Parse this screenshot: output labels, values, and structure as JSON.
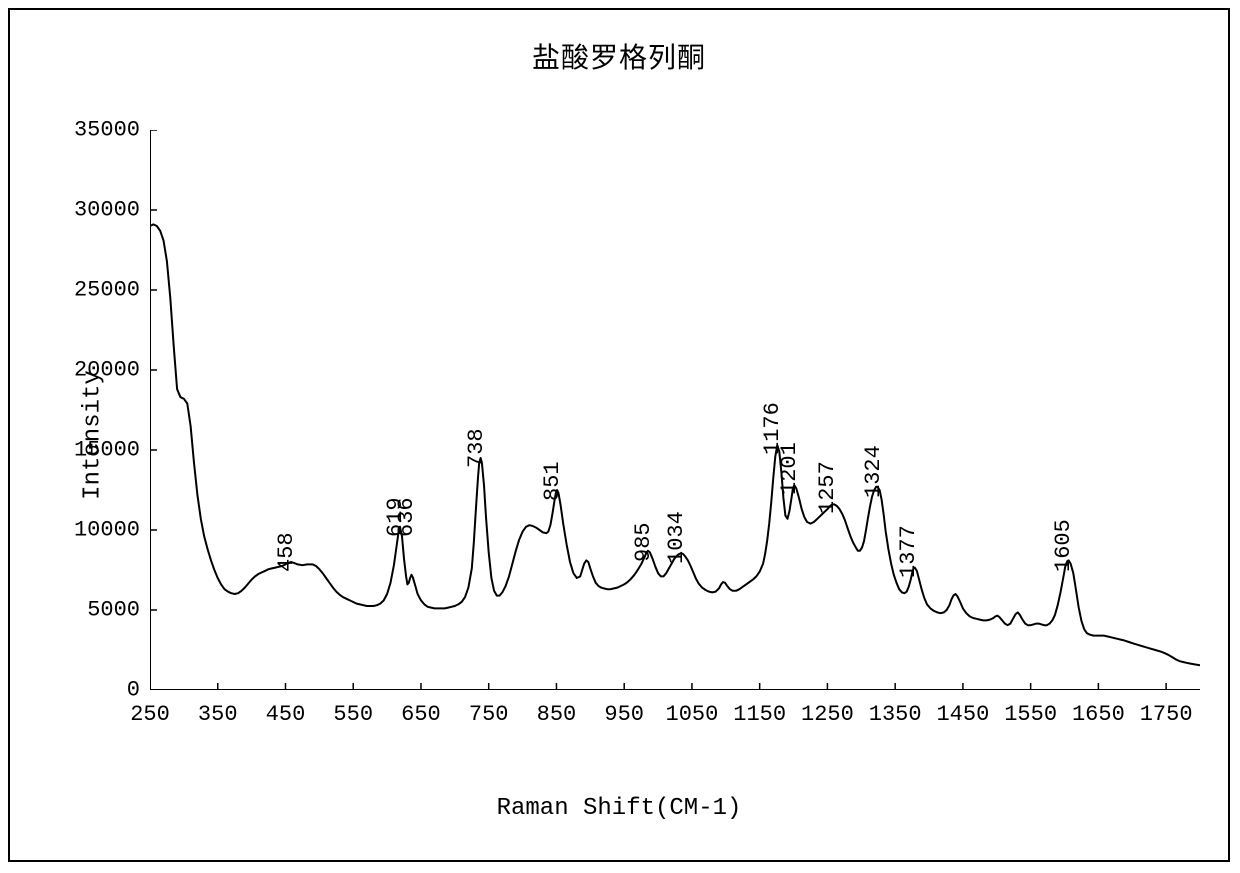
{
  "chart": {
    "type": "line",
    "title": "盐酸罗格列酮",
    "title_fontsize": 28,
    "xlabel": "Raman Shift(CM-1)",
    "ylabel": "Intensity",
    "label_fontsize": 24,
    "font_family_axis": "Courier New",
    "font_family_title": "SimSun",
    "background_color": "#ffffff",
    "line_color": "#000000",
    "line_width": 2,
    "frame_color": "#000000",
    "xlim": [
      250,
      1800
    ],
    "ylim": [
      0,
      35000
    ],
    "xtick_step": 100,
    "ytick_step": 5000,
    "xticks": [
      250,
      350,
      450,
      550,
      650,
      750,
      850,
      950,
      1050,
      1150,
      1250,
      1350,
      1450,
      1550,
      1650,
      1750
    ],
    "yticks": [
      0,
      5000,
      10000,
      15000,
      20000,
      25000,
      30000,
      35000
    ],
    "tick_length": 7,
    "tick_fontsize": 22,
    "grid": false,
    "peak_labels": [
      {
        "x": 458,
        "y_top": 8200,
        "text": "458"
      },
      {
        "x": 619,
        "y_top": 10400,
        "text": "619"
      },
      {
        "x": 636,
        "y_top": 10400,
        "text": "636"
      },
      {
        "x": 738,
        "y_top": 14700,
        "text": "738"
      },
      {
        "x": 851,
        "y_top": 12600,
        "text": "851"
      },
      {
        "x": 985,
        "y_top": 8800,
        "text": "985"
      },
      {
        "x": 1034,
        "y_top": 8700,
        "text": "1034"
      },
      {
        "x": 1176,
        "y_top": 15500,
        "text": "1176"
      },
      {
        "x": 1201,
        "y_top": 13000,
        "text": "1201"
      },
      {
        "x": 1257,
        "y_top": 11800,
        "text": "1257"
      },
      {
        "x": 1324,
        "y_top": 12800,
        "text": "1324"
      },
      {
        "x": 1377,
        "y_top": 7800,
        "text": "1377"
      },
      {
        "x": 1605,
        "y_top": 8200,
        "text": "1605"
      }
    ],
    "peak_label_fontsize": 22,
    "peak_label_rotation": -90,
    "data_points": [
      [
        250,
        29000
      ],
      [
        255,
        29100
      ],
      [
        260,
        29000
      ],
      [
        265,
        28700
      ],
      [
        270,
        28100
      ],
      [
        275,
        26800
      ],
      [
        280,
        24500
      ],
      [
        285,
        21500
      ],
      [
        290,
        18800
      ],
      [
        295,
        18300
      ],
      [
        300,
        18200
      ],
      [
        305,
        17900
      ],
      [
        310,
        16500
      ],
      [
        315,
        14200
      ],
      [
        320,
        12200
      ],
      [
        325,
        10700
      ],
      [
        330,
        9600
      ],
      [
        335,
        8800
      ],
      [
        340,
        8100
      ],
      [
        345,
        7500
      ],
      [
        350,
        7000
      ],
      [
        355,
        6600
      ],
      [
        360,
        6300
      ],
      [
        365,
        6150
      ],
      [
        370,
        6050
      ],
      [
        375,
        6000
      ],
      [
        380,
        6050
      ],
      [
        385,
        6200
      ],
      [
        390,
        6400
      ],
      [
        395,
        6650
      ],
      [
        400,
        6900
      ],
      [
        405,
        7100
      ],
      [
        410,
        7250
      ],
      [
        415,
        7350
      ],
      [
        420,
        7450
      ],
      [
        425,
        7550
      ],
      [
        430,
        7600
      ],
      [
        435,
        7650
      ],
      [
        440,
        7700
      ],
      [
        445,
        7750
      ],
      [
        450,
        7850
      ],
      [
        455,
        7950
      ],
      [
        458,
        8000
      ],
      [
        462,
        7950
      ],
      [
        468,
        7850
      ],
      [
        475,
        7800
      ],
      [
        482,
        7850
      ],
      [
        490,
        7850
      ],
      [
        495,
        7750
      ],
      [
        500,
        7550
      ],
      [
        505,
        7300
      ],
      [
        510,
        7000
      ],
      [
        515,
        6700
      ],
      [
        520,
        6400
      ],
      [
        525,
        6150
      ],
      [
        530,
        5950
      ],
      [
        535,
        5800
      ],
      [
        540,
        5700
      ],
      [
        545,
        5600
      ],
      [
        550,
        5500
      ],
      [
        555,
        5400
      ],
      [
        560,
        5350
      ],
      [
        565,
        5300
      ],
      [
        570,
        5250
      ],
      [
        575,
        5250
      ],
      [
        580,
        5250
      ],
      [
        585,
        5300
      ],
      [
        590,
        5400
      ],
      [
        595,
        5600
      ],
      [
        600,
        6000
      ],
      [
        605,
        6700
      ],
      [
        610,
        7800
      ],
      [
        614,
        9000
      ],
      [
        617,
        9900
      ],
      [
        619,
        10200
      ],
      [
        622,
        9600
      ],
      [
        625,
        8200
      ],
      [
        628,
        7100
      ],
      [
        630,
        6600
      ],
      [
        632,
        6700
      ],
      [
        634,
        7000
      ],
      [
        636,
        7200
      ],
      [
        638,
        7050
      ],
      [
        641,
        6600
      ],
      [
        645,
        6000
      ],
      [
        650,
        5600
      ],
      [
        655,
        5350
      ],
      [
        660,
        5200
      ],
      [
        665,
        5150
      ],
      [
        670,
        5100
      ],
      [
        675,
        5100
      ],
      [
        680,
        5100
      ],
      [
        685,
        5100
      ],
      [
        690,
        5150
      ],
      [
        695,
        5200
      ],
      [
        700,
        5250
      ],
      [
        705,
        5350
      ],
      [
        710,
        5500
      ],
      [
        715,
        5800
      ],
      [
        720,
        6400
      ],
      [
        725,
        7600
      ],
      [
        728,
        9200
      ],
      [
        731,
        11200
      ],
      [
        734,
        13200
      ],
      [
        736,
        14200
      ],
      [
        738,
        14500
      ],
      [
        740,
        14200
      ],
      [
        743,
        12800
      ],
      [
        746,
        10800
      ],
      [
        750,
        8600
      ],
      [
        754,
        7000
      ],
      [
        758,
        6200
      ],
      [
        762,
        5900
      ],
      [
        766,
        5900
      ],
      [
        770,
        6100
      ],
      [
        775,
        6500
      ],
      [
        780,
        7100
      ],
      [
        785,
        7900
      ],
      [
        790,
        8700
      ],
      [
        795,
        9400
      ],
      [
        800,
        9900
      ],
      [
        805,
        10200
      ],
      [
        810,
        10300
      ],
      [
        815,
        10250
      ],
      [
        820,
        10150
      ],
      [
        825,
        10000
      ],
      [
        830,
        9850
      ],
      [
        835,
        9800
      ],
      [
        838,
        9900
      ],
      [
        841,
        10300
      ],
      [
        844,
        11000
      ],
      [
        847,
        11800
      ],
      [
        849,
        12300
      ],
      [
        851,
        12500
      ],
      [
        853,
        12300
      ],
      [
        856,
        11600
      ],
      [
        860,
        10400
      ],
      [
        865,
        9100
      ],
      [
        870,
        8000
      ],
      [
        875,
        7300
      ],
      [
        880,
        7000
      ],
      [
        885,
        7100
      ],
      [
        888,
        7500
      ],
      [
        891,
        7900
      ],
      [
        894,
        8100
      ],
      [
        897,
        8000
      ],
      [
        900,
        7600
      ],
      [
        904,
        7100
      ],
      [
        908,
        6700
      ],
      [
        912,
        6500
      ],
      [
        916,
        6400
      ],
      [
        920,
        6350
      ],
      [
        925,
        6300
      ],
      [
        930,
        6300
      ],
      [
        935,
        6350
      ],
      [
        940,
        6400
      ],
      [
        945,
        6500
      ],
      [
        950,
        6600
      ],
      [
        955,
        6750
      ],
      [
        960,
        6950
      ],
      [
        965,
        7200
      ],
      [
        970,
        7500
      ],
      [
        975,
        7850
      ],
      [
        980,
        8300
      ],
      [
        983,
        8600
      ],
      [
        985,
        8700
      ],
      [
        988,
        8600
      ],
      [
        992,
        8200
      ],
      [
        996,
        7700
      ],
      [
        1000,
        7300
      ],
      [
        1004,
        7100
      ],
      [
        1008,
        7100
      ],
      [
        1012,
        7300
      ],
      [
        1016,
        7600
      ],
      [
        1020,
        7900
      ],
      [
        1024,
        8200
      ],
      [
        1028,
        8400
      ],
      [
        1031,
        8500
      ],
      [
        1034,
        8550
      ],
      [
        1037,
        8500
      ],
      [
        1040,
        8350
      ],
      [
        1044,
        8100
      ],
      [
        1048,
        7750
      ],
      [
        1052,
        7350
      ],
      [
        1056,
        6950
      ],
      [
        1060,
        6650
      ],
      [
        1065,
        6400
      ],
      [
        1070,
        6250
      ],
      [
        1075,
        6150
      ],
      [
        1080,
        6100
      ],
      [
        1085,
        6150
      ],
      [
        1090,
        6350
      ],
      [
        1093,
        6600
      ],
      [
        1096,
        6750
      ],
      [
        1099,
        6700
      ],
      [
        1102,
        6500
      ],
      [
        1106,
        6300
      ],
      [
        1110,
        6200
      ],
      [
        1115,
        6200
      ],
      [
        1120,
        6300
      ],
      [
        1125,
        6450
      ],
      [
        1130,
        6600
      ],
      [
        1135,
        6750
      ],
      [
        1140,
        6900
      ],
      [
        1145,
        7100
      ],
      [
        1150,
        7400
      ],
      [
        1155,
        7900
      ],
      [
        1158,
        8500
      ],
      [
        1161,
        9300
      ],
      [
        1164,
        10400
      ],
      [
        1167,
        11700
      ],
      [
        1170,
        13200
      ],
      [
        1173,
        14600
      ],
      [
        1176,
        15300
      ],
      [
        1179,
        14900
      ],
      [
        1182,
        13600
      ],
      [
        1185,
        12000
      ],
      [
        1188,
        10900
      ],
      [
        1191,
        10700
      ],
      [
        1194,
        11200
      ],
      [
        1197,
        12000
      ],
      [
        1199,
        12600
      ],
      [
        1201,
        12800
      ],
      [
        1204,
        12600
      ],
      [
        1208,
        12000
      ],
      [
        1212,
        11300
      ],
      [
        1216,
        10800
      ],
      [
        1220,
        10500
      ],
      [
        1225,
        10400
      ],
      [
        1230,
        10500
      ],
      [
        1235,
        10700
      ],
      [
        1240,
        10900
      ],
      [
        1245,
        11100
      ],
      [
        1250,
        11300
      ],
      [
        1254,
        11500
      ],
      [
        1257,
        11600
      ],
      [
        1260,
        11600
      ],
      [
        1264,
        11500
      ],
      [
        1268,
        11300
      ],
      [
        1272,
        11000
      ],
      [
        1276,
        10600
      ],
      [
        1280,
        10100
      ],
      [
        1284,
        9600
      ],
      [
        1288,
        9200
      ],
      [
        1292,
        8900
      ],
      [
        1295,
        8700
      ],
      [
        1298,
        8700
      ],
      [
        1301,
        8900
      ],
      [
        1304,
        9300
      ],
      [
        1307,
        10000
      ],
      [
        1310,
        10800
      ],
      [
        1313,
        11500
      ],
      [
        1316,
        12100
      ],
      [
        1319,
        12500
      ],
      [
        1322,
        12700
      ],
      [
        1324,
        12700
      ],
      [
        1327,
        12500
      ],
      [
        1330,
        11900
      ],
      [
        1333,
        11000
      ],
      [
        1336,
        9900
      ],
      [
        1340,
        8800
      ],
      [
        1344,
        7900
      ],
      [
        1348,
        7200
      ],
      [
        1352,
        6700
      ],
      [
        1356,
        6300
      ],
      [
        1360,
        6100
      ],
      [
        1364,
        6050
      ],
      [
        1367,
        6150
      ],
      [
        1370,
        6450
      ],
      [
        1373,
        6900
      ],
      [
        1375,
        7300
      ],
      [
        1377,
        7600
      ],
      [
        1379,
        7650
      ],
      [
        1382,
        7450
      ],
      [
        1385,
        6950
      ],
      [
        1389,
        6300
      ],
      [
        1393,
        5750
      ],
      [
        1397,
        5350
      ],
      [
        1402,
        5100
      ],
      [
        1407,
        4950
      ],
      [
        1412,
        4850
      ],
      [
        1417,
        4800
      ],
      [
        1422,
        4850
      ],
      [
        1426,
        5000
      ],
      [
        1430,
        5300
      ],
      [
        1433,
        5650
      ],
      [
        1436,
        5900
      ],
      [
        1439,
        6000
      ],
      [
        1442,
        5850
      ],
      [
        1446,
        5500
      ],
      [
        1450,
        5100
      ],
      [
        1455,
        4800
      ],
      [
        1460,
        4600
      ],
      [
        1465,
        4500
      ],
      [
        1470,
        4450
      ],
      [
        1475,
        4400
      ],
      [
        1480,
        4350
      ],
      [
        1485,
        4350
      ],
      [
        1490,
        4400
      ],
      [
        1495,
        4500
      ],
      [
        1498,
        4600
      ],
      [
        1501,
        4650
      ],
      [
        1504,
        4550
      ],
      [
        1508,
        4350
      ],
      [
        1512,
        4150
      ],
      [
        1516,
        4050
      ],
      [
        1520,
        4150
      ],
      [
        1524,
        4450
      ],
      [
        1528,
        4750
      ],
      [
        1531,
        4850
      ],
      [
        1534,
        4700
      ],
      [
        1538,
        4400
      ],
      [
        1542,
        4150
      ],
      [
        1546,
        4050
      ],
      [
        1550,
        4050
      ],
      [
        1554,
        4100
      ],
      [
        1558,
        4150
      ],
      [
        1562,
        4150
      ],
      [
        1566,
        4100
      ],
      [
        1570,
        4050
      ],
      [
        1574,
        4050
      ],
      [
        1578,
        4150
      ],
      [
        1582,
        4350
      ],
      [
        1586,
        4700
      ],
      [
        1590,
        5300
      ],
      [
        1594,
        6100
      ],
      [
        1598,
        7000
      ],
      [
        1601,
        7700
      ],
      [
        1604,
        8050
      ],
      [
        1606,
        8100
      ],
      [
        1609,
        7900
      ],
      [
        1613,
        7300
      ],
      [
        1617,
        6250
      ],
      [
        1621,
        5150
      ],
      [
        1625,
        4300
      ],
      [
        1629,
        3800
      ],
      [
        1633,
        3550
      ],
      [
        1638,
        3450
      ],
      [
        1643,
        3400
      ],
      [
        1648,
        3400
      ],
      [
        1653,
        3400
      ],
      [
        1658,
        3400
      ],
      [
        1663,
        3350
      ],
      [
        1668,
        3300
      ],
      [
        1673,
        3250
      ],
      [
        1678,
        3200
      ],
      [
        1683,
        3150
      ],
      [
        1688,
        3100
      ],
      [
        1695,
        3000
      ],
      [
        1702,
        2900
      ],
      [
        1710,
        2800
      ],
      [
        1718,
        2700
      ],
      [
        1726,
        2600
      ],
      [
        1734,
        2500
      ],
      [
        1742,
        2400
      ],
      [
        1748,
        2300
      ],
      [
        1753,
        2200
      ],
      [
        1757,
        2100
      ],
      [
        1761,
        2000
      ],
      [
        1765,
        1900
      ],
      [
        1770,
        1800
      ],
      [
        1775,
        1750
      ],
      [
        1780,
        1700
      ],
      [
        1786,
        1650
      ],
      [
        1792,
        1600
      ],
      [
        1800,
        1550
      ]
    ]
  }
}
